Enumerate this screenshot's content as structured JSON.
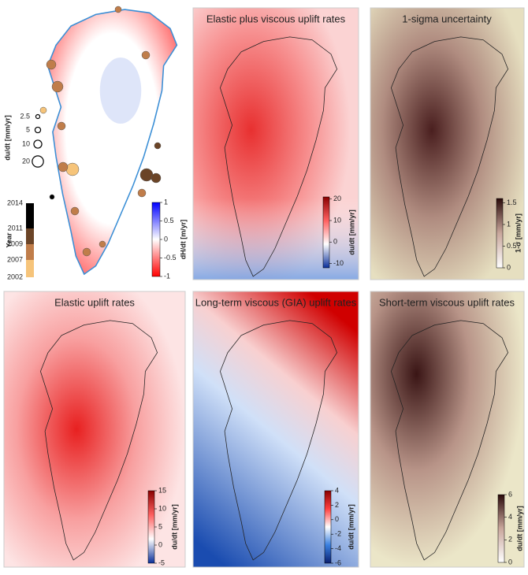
{
  "overview": {
    "colorbar": {
      "label": "dH/dt [m/yr]",
      "ticks": [
        1,
        0.5,
        0,
        -0.5,
        -1
      ],
      "range": [
        -1,
        1
      ],
      "colors": [
        "#ff0000",
        "#ffffff",
        "#0000ff"
      ]
    },
    "year_bar": {
      "label": "Year",
      "labels": [
        2014,
        2011,
        2009,
        2007,
        2002
      ],
      "colors": [
        "#000000",
        "#6b4427",
        "#c07d4a",
        "#f6c47a"
      ]
    },
    "size_legend": {
      "label": "du/dt [mm/yr]",
      "values": [
        2.5,
        5,
        10,
        20
      ]
    }
  },
  "panels": [
    {
      "title": "Elastic plus viscous uplift rates",
      "colorbar": {
        "label": "du/dt [mm/yr]",
        "ticks": [
          20,
          10,
          0,
          -10
        ],
        "range": [
          -12,
          21
        ],
        "colors": [
          "#0a2f9a",
          "#ffffff",
          "#ff6060",
          "#8a0000"
        ]
      }
    },
    {
      "title": "1-sigma uncertainty",
      "colorbar": {
        "label": "1-σ [mm/yr]",
        "ticks": [
          1.5,
          1,
          0.5,
          0
        ],
        "range": [
          0,
          1.6
        ],
        "colors": [
          "#ffffff",
          "#c9a79c",
          "#2a0a0a"
        ]
      }
    },
    {
      "title": "Elastic uplift rates",
      "colorbar": {
        "label": "du/dt [mm/yr]",
        "ticks": [
          15,
          10,
          5,
          0,
          -5
        ],
        "range": [
          -5,
          15
        ],
        "colors": [
          "#0a2f9a",
          "#ffffff",
          "#ff6060",
          "#8a0000"
        ]
      }
    },
    {
      "title": "Long-term viscous (GIA) uplift rates",
      "colorbar": {
        "label": "du/dt [mm/yr]",
        "ticks": [
          4,
          2,
          0,
          -2,
          -4,
          -6
        ],
        "range": [
          -6,
          4
        ],
        "colors": [
          "#0a1f70",
          "#3a80e0",
          "#ffffff",
          "#ff4040",
          "#8a0000"
        ]
      }
    },
    {
      "title": "Short-term viscous uplift rates",
      "colorbar": {
        "label": "du/dt [mm/yr]",
        "ticks": [
          6,
          4,
          2,
          0
        ],
        "range": [
          0,
          6
        ],
        "colors": [
          "#ffffff",
          "#c9a79c",
          "#2a0a0a"
        ]
      }
    }
  ]
}
